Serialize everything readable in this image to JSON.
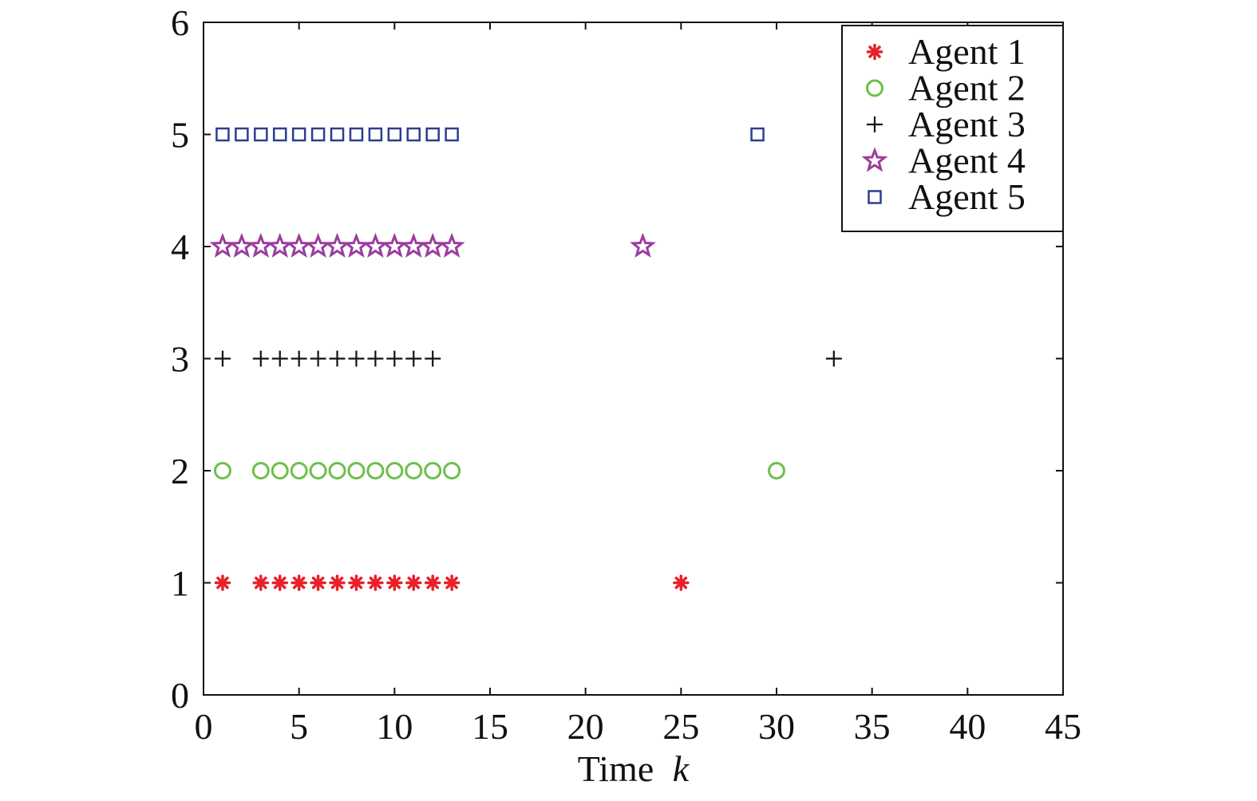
{
  "chart_data": {
    "type": "scatter",
    "xlabel": "Time",
    "xlabel_var": "k",
    "ylabel": "",
    "xlim": [
      0,
      45
    ],
    "ylim": [
      0,
      6
    ],
    "xticks": [
      0,
      5,
      10,
      15,
      20,
      25,
      30,
      35,
      40,
      45
    ],
    "yticks": [
      0,
      1,
      2,
      3,
      4,
      5,
      6
    ],
    "grid": false,
    "legend_position": "top-right",
    "series": [
      {
        "name": "Agent 1",
        "marker": "asterisk",
        "color": "#e8202a",
        "points": [
          [
            1,
            1
          ],
          [
            3,
            1
          ],
          [
            4,
            1
          ],
          [
            5,
            1
          ],
          [
            6,
            1
          ],
          [
            7,
            1
          ],
          [
            8,
            1
          ],
          [
            9,
            1
          ],
          [
            10,
            1
          ],
          [
            11,
            1
          ],
          [
            12,
            1
          ],
          [
            13,
            1
          ],
          [
            25,
            1
          ]
        ]
      },
      {
        "name": "Agent 2",
        "marker": "circle",
        "color": "#6cc04a",
        "points": [
          [
            1,
            2
          ],
          [
            3,
            2
          ],
          [
            4,
            2
          ],
          [
            5,
            2
          ],
          [
            6,
            2
          ],
          [
            7,
            2
          ],
          [
            8,
            2
          ],
          [
            9,
            2
          ],
          [
            10,
            2
          ],
          [
            11,
            2
          ],
          [
            12,
            2
          ],
          [
            13,
            2
          ],
          [
            30,
            2
          ]
        ]
      },
      {
        "name": "Agent 3",
        "marker": "plus",
        "color": "#111111",
        "points": [
          [
            1,
            3
          ],
          [
            3,
            3
          ],
          [
            4,
            3
          ],
          [
            5,
            3
          ],
          [
            6,
            3
          ],
          [
            7,
            3
          ],
          [
            8,
            3
          ],
          [
            9,
            3
          ],
          [
            10,
            3
          ],
          [
            11,
            3
          ],
          [
            12,
            3
          ],
          [
            33,
            3
          ]
        ]
      },
      {
        "name": "Agent 4",
        "marker": "star",
        "color": "#9b3d9e",
        "points": [
          [
            1,
            4
          ],
          [
            2,
            4
          ],
          [
            3,
            4
          ],
          [
            4,
            4
          ],
          [
            5,
            4
          ],
          [
            6,
            4
          ],
          [
            7,
            4
          ],
          [
            8,
            4
          ],
          [
            9,
            4
          ],
          [
            10,
            4
          ],
          [
            11,
            4
          ],
          [
            12,
            4
          ],
          [
            13,
            4
          ],
          [
            23,
            4
          ]
        ]
      },
      {
        "name": "Agent 5",
        "marker": "square",
        "color": "#2b3f8f",
        "points": [
          [
            1,
            5
          ],
          [
            2,
            5
          ],
          [
            3,
            5
          ],
          [
            4,
            5
          ],
          [
            5,
            5
          ],
          [
            6,
            5
          ],
          [
            7,
            5
          ],
          [
            8,
            5
          ],
          [
            9,
            5
          ],
          [
            10,
            5
          ],
          [
            11,
            5
          ],
          [
            12,
            5
          ],
          [
            13,
            5
          ],
          [
            29,
            5
          ]
        ]
      }
    ]
  }
}
